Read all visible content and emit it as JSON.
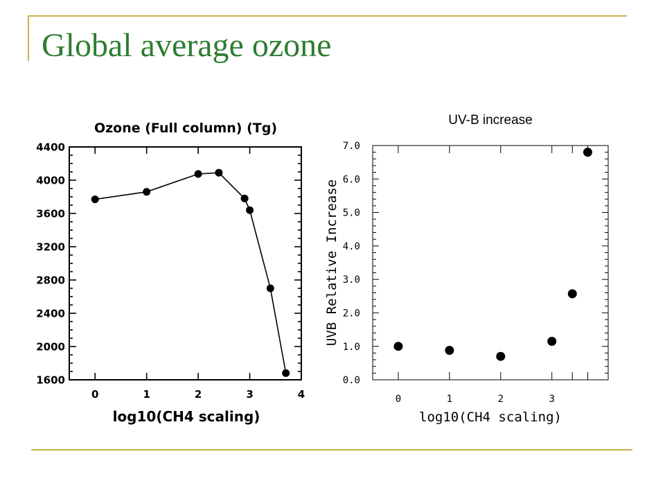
{
  "slide": {
    "title": "Global average ozone",
    "title_color": "#2e7d32",
    "rule_color": "#c9b44e"
  },
  "chart_data": [
    {
      "type": "line",
      "title": "Ozone (Full column) (Tg)",
      "xlabel": "log10(CH4 scaling)",
      "ylabel": "",
      "xlim": [
        -0.5,
        4
      ],
      "ylim": [
        1600,
        4400
      ],
      "xticks": [
        0,
        1,
        2,
        3,
        4
      ],
      "xtick_labels": [
        "0",
        "1",
        "2",
        "3",
        "4"
      ],
      "yticks": [
        1600,
        2000,
        2400,
        2800,
        3200,
        3600,
        4000,
        4400
      ],
      "ytick_labels": [
        "1600",
        "2000",
        "2400",
        "2800",
        "3200",
        "3600",
        "4000",
        "4400"
      ],
      "grid": false,
      "x": [
        0,
        1,
        2,
        2.4,
        2.9,
        3,
        3.4,
        3.7
      ],
      "y": [
        3770,
        3860,
        4075,
        4090,
        3780,
        3640,
        2700,
        1680
      ]
    },
    {
      "type": "scatter",
      "title": "UV-B increase",
      "xlabel": "log10(CH4 scaling)",
      "ylabel": "UVB Relative Increase",
      "xlim": [
        -0.5,
        4.1
      ],
      "ylim": [
        0,
        7
      ],
      "xticks": [
        0,
        1,
        2,
        3
      ],
      "xtick_labels": [
        "0",
        "1",
        "2",
        "3"
      ],
      "yticks": [
        0,
        1,
        2,
        3,
        4,
        5,
        6,
        7
      ],
      "ytick_labels": [
        "0.0",
        "1.0",
        "2.0",
        "3.0",
        "4.0",
        "5.0",
        "6.0",
        "7.0"
      ],
      "grid": false,
      "x": [
        0,
        1,
        2,
        3,
        3.4,
        3.7
      ],
      "y": [
        1.0,
        0.88,
        0.7,
        1.15,
        2.57,
        6.8
      ]
    }
  ]
}
